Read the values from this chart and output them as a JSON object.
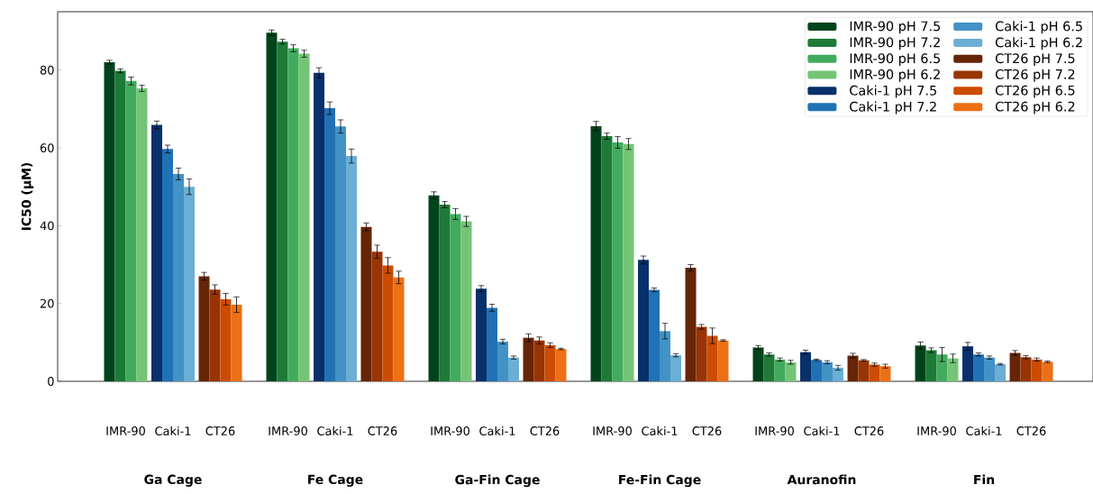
{
  "chart_data": {
    "type": "bar",
    "ylabel": "IC50 (µM)",
    "categories": [
      "Ga Cage",
      "Fe Cage",
      "Ga-Fin Cage",
      "Fe-Fin Cage",
      "Auranofin",
      "Fin"
    ],
    "ylim": [
      0,
      95
    ],
    "yticks": [
      0,
      20,
      40,
      60,
      80
    ],
    "grid": false,
    "legend": "top right",
    "annotations": [
      "IMR-90",
      "Caki-1",
      "CT26",
      "IMR-90",
      "Caki-1",
      "CT26",
      "IMR-90",
      "Caki-1",
      "CT26",
      "IMR-90",
      "Caki-1",
      "CT26",
      "IMR-90",
      "Caki-1",
      "CT26",
      "IMR-90",
      "Caki-1",
      "CT26"
    ],
    "series": [
      {
        "name": "IMR-90 pH 7.5",
        "color": "#00441b",
        "values": [
          82,
          89.6,
          47.8,
          65.6,
          8.7,
          9.2
        ],
        "errors": [
          0.5,
          0.7,
          0.9,
          1.2,
          0.5,
          0.9
        ]
      },
      {
        "name": "IMR-90 pH 7.2",
        "color": "#1d7a37",
        "values": [
          79.8,
          87.3,
          45.4,
          63,
          6.9,
          8
        ],
        "errors": [
          0.5,
          0.6,
          0.8,
          0.8,
          0.4,
          0.6
        ]
      },
      {
        "name": "IMR-90 pH 6.5",
        "color": "#41ab5d",
        "values": [
          77.2,
          85.6,
          43,
          61.4,
          5.6,
          6.9
        ],
        "errors": [
          1,
          0.9,
          1.4,
          1.5,
          0.4,
          1.8
        ]
      },
      {
        "name": "IMR-90 pH 6.2",
        "color": "#74c476",
        "values": [
          75.3,
          84.2,
          41.1,
          61,
          4.9,
          5.9
        ],
        "errors": [
          0.8,
          0.9,
          1.3,
          1.4,
          0.5,
          1.1
        ]
      },
      {
        "name": "Caki-1 pH 7.5",
        "color": "#08306b",
        "values": [
          65.9,
          79.3,
          23.8,
          31.2,
          7.5,
          9
        ],
        "errors": [
          1,
          1.3,
          0.8,
          1,
          0.5,
          1
        ]
      },
      {
        "name": "Caki-1 pH 7.2",
        "color": "#2171b5",
        "values": [
          59.7,
          70.2,
          18.9,
          23.5,
          5.5,
          6.9
        ],
        "errors": [
          1,
          1.6,
          0.9,
          0.5,
          0.2,
          0.4
        ]
      },
      {
        "name": "Caki-1 pH 6.5",
        "color": "#4292c6",
        "values": [
          53.3,
          65.5,
          10.2,
          12.9,
          4.9,
          6.1
        ],
        "errors": [
          1.5,
          1.7,
          0.6,
          2,
          0.4,
          0.4
        ]
      },
      {
        "name": "Caki-1 pH 6.2",
        "color": "#6baed6",
        "values": [
          50,
          57.9,
          6.1,
          6.7,
          3.5,
          4.4
        ],
        "errors": [
          2,
          1.8,
          0.4,
          0.4,
          0.6,
          0.2
        ]
      },
      {
        "name": "CT26 pH 7.5",
        "color": "#662506",
        "values": [
          27,
          39.7,
          11.2,
          29.2,
          6.6,
          7.3
        ],
        "errors": [
          1,
          1,
          1,
          0.8,
          0.6,
          0.6
        ]
      },
      {
        "name": "CT26 pH 7.2",
        "color": "#993404",
        "values": [
          23.6,
          33.3,
          10.5,
          14,
          5.4,
          6.2
        ],
        "errors": [
          1.2,
          1.7,
          0.9,
          0.6,
          0.2,
          0.4
        ]
      },
      {
        "name": "CT26 pH 6.5",
        "color": "#cc4c02",
        "values": [
          21.1,
          29.8,
          9.3,
          11.7,
          4.3,
          5.6
        ],
        "errors": [
          1.5,
          2,
          0.6,
          2,
          0.4,
          0.4
        ]
      },
      {
        "name": "CT26 pH 6.2",
        "color": "#ec7014",
        "values": [
          19.7,
          26.7,
          8.3,
          10.5,
          3.9,
          5
        ],
        "errors": [
          2,
          1.6,
          0.2,
          0.2,
          0.5,
          0.2
        ]
      }
    ]
  }
}
